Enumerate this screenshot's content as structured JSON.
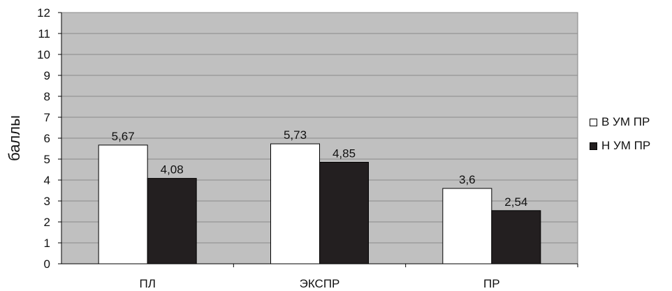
{
  "chart_data": {
    "type": "bar",
    "categories": [
      "ПЛ",
      "ЭКСПР",
      "ПР"
    ],
    "series": [
      {
        "name": "В УМ ПР",
        "values": [
          5.67,
          5.73,
          3.6
        ],
        "labels": [
          "5,67",
          "5,73",
          "3,6"
        ],
        "color": "#ffffff"
      },
      {
        "name": "Н УМ ПР",
        "values": [
          4.08,
          4.85,
          2.54
        ],
        "labels": [
          "4,08",
          "4,85",
          "2,54"
        ],
        "color": "#231f20"
      }
    ],
    "title": "",
    "xlabel": "",
    "ylabel": "баллы",
    "ylim": [
      0,
      12
    ],
    "yticks": [
      "0",
      "1",
      "2",
      "3",
      "4",
      "5",
      "6",
      "7",
      "8",
      "9",
      "10",
      "11",
      "12"
    ],
    "grid": true,
    "legend_position": "right",
    "plot_background": "#c0c0c0"
  }
}
